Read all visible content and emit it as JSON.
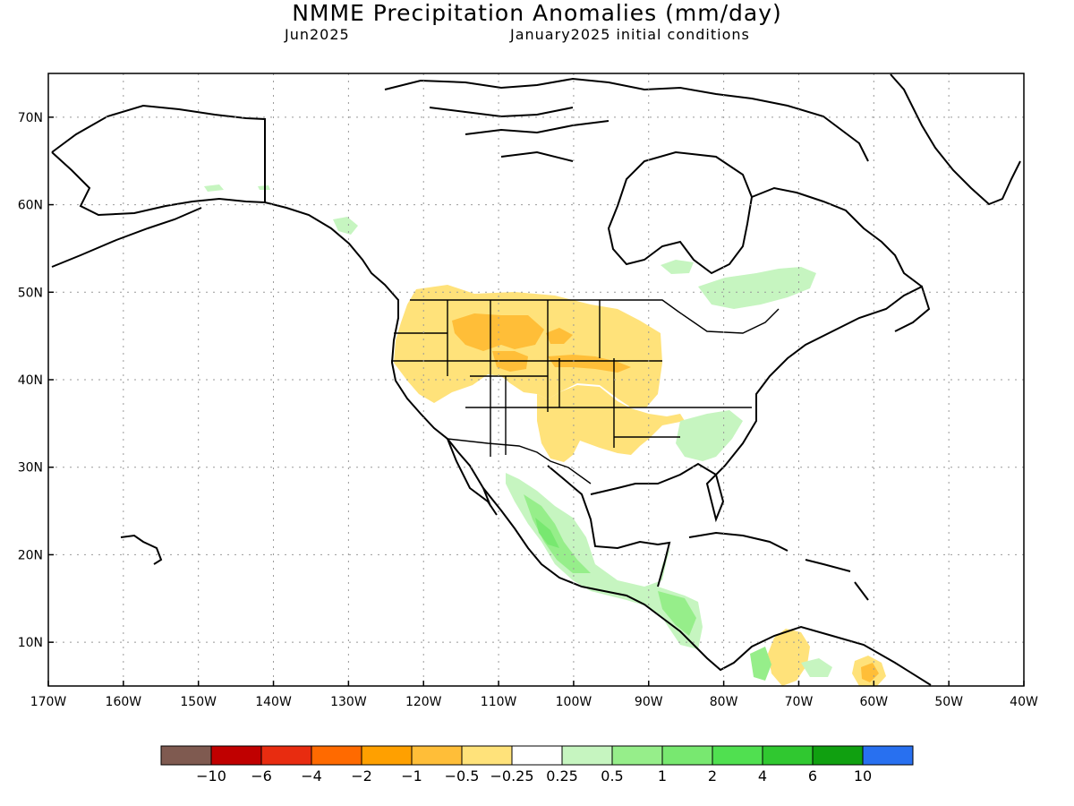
{
  "header": {
    "title": "NMME Precipitation Anomalies (mm/day)",
    "target_month": "Jun2025",
    "initial_conditions": "January2025 initial conditions"
  },
  "axes": {
    "lat_labels": [
      "70N",
      "60N",
      "50N",
      "40N",
      "30N",
      "20N",
      "10N"
    ],
    "lat_values": [
      70,
      60,
      50,
      40,
      30,
      20,
      10
    ],
    "lon_labels": [
      "170W",
      "160W",
      "150W",
      "140W",
      "130W",
      "120W",
      "110W",
      "100W",
      "90W",
      "80W",
      "70W",
      "60W",
      "50W",
      "40W"
    ],
    "lon_values": [
      -170,
      -160,
      -150,
      -140,
      -130,
      -120,
      -110,
      -100,
      -90,
      -80,
      -70,
      -60,
      -50,
      -40
    ],
    "lon_range": [
      -170,
      -40
    ],
    "lat_range": [
      5,
      75
    ],
    "grid": "dotted"
  },
  "colorbar": {
    "colors": [
      "#7f5a50",
      "#c00000",
      "#e82c10",
      "#ff6a00",
      "#ffa000",
      "#ffbe38",
      "#ffe27a",
      "#ffffff",
      "#c6f5c0",
      "#96ee8a",
      "#78e870",
      "#50e050",
      "#30c830",
      "#10a010",
      "#2870f0"
    ],
    "labels": [
      "−10",
      "−6",
      "−4",
      "−2",
      "−1",
      "−0.5",
      "−0.25",
      "0.25",
      "0.5",
      "1",
      "2",
      "4",
      "6",
      "10"
    ]
  },
  "anomaly_colors": {
    "dry_light": "#ffe27a",
    "dry_mid": "#ffbe38",
    "wet_light": "#c6f5c0",
    "wet_mid": "#96ee8a",
    "wet_strong": "#78e870"
  },
  "regions": {
    "dry": [
      "Pacific Northwest",
      "Northern Rockies",
      "Northern Plains",
      "Central Plains",
      "Southern Plains",
      "Mid-South",
      "Northern Colombia/Venezuela"
    ],
    "wet": [
      "Western Mexico",
      "Southern Mexico",
      "Central America",
      "Southeast US",
      "Eastern Canada",
      "Northern Colombia"
    ]
  }
}
